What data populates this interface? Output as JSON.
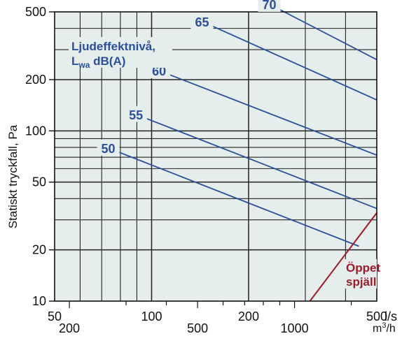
{
  "chart_data": {
    "type": "line",
    "title": "",
    "ylabel": "Statiskt tryckfall, Pa",
    "x_scale": "log",
    "y_scale": "log",
    "xlim": [
      50,
      500
    ],
    "ylim": [
      10,
      500
    ],
    "x_primary_ticks": [
      "50",
      "100",
      "200",
      "500"
    ],
    "x_primary_unit": "l/s",
    "x_secondary_ticks": [
      "200",
      "500",
      "1000"
    ],
    "x_secondary_unit_base": "m",
    "x_secondary_unit_sup": "3",
    "x_secondary_unit_tail": "/h",
    "y_ticks": [
      "500",
      "200",
      "100",
      "50",
      "20",
      "10"
    ],
    "grid": true,
    "legend_title_line1": "Ljudeffektnivå,",
    "legend_title_line2_base": "L",
    "legend_title_line2_sub": "wa",
    "legend_title_line2_tail": " dB(A)",
    "series": [
      {
        "name": "50",
        "x": [
          82,
          440
        ],
        "y": [
          73,
          21
        ]
      },
      {
        "name": "55",
        "x": [
          100,
          500
        ],
        "y": [
          115,
          35
        ]
      },
      {
        "name": "60",
        "x": [
          118,
          500
        ],
        "y": [
          208,
          72
        ]
      },
      {
        "name": "65",
        "x": [
          160,
          500
        ],
        "y": [
          400,
          152
        ]
      },
      {
        "name": "70",
        "x": [
          258,
          500
        ],
        "y": [
          500,
          262
        ]
      }
    ],
    "damper_curve": {
      "name_line1": "Öppet",
      "name_line2": "spjäll",
      "x": [
        310,
        500
      ],
      "y": [
        10,
        33
      ]
    },
    "colors": {
      "isolines": "#2b4f9c",
      "damper": "#9b1b2a",
      "plot_bg": "#e5eeec",
      "grid": "#222222"
    }
  }
}
